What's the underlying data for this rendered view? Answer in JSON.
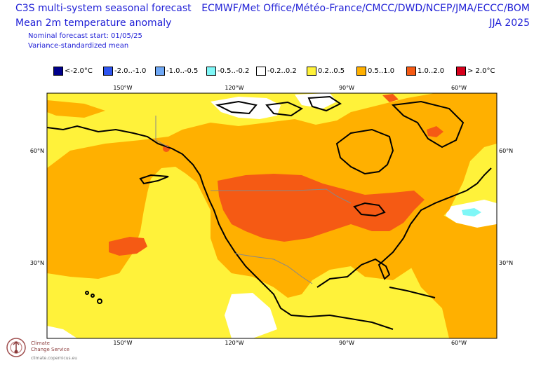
{
  "header": {
    "title_left": "C3S multi-system seasonal forecast",
    "subtitle_left": "Mean 2m temperature anomaly",
    "nominal_start": "Nominal forecast start: 01/05/25",
    "variance_note": "Variance-standardized mean",
    "title_right": "ECMWF/Met Office/Météo-France/CMCC/DWD/NCEP/JMA/ECCC/BOM",
    "season": "JJA 2025"
  },
  "legend": [
    {
      "label": "<-2.0°C",
      "color": "#00008b"
    },
    {
      "label": "-2.0..-1.0",
      "color": "#2f55f0"
    },
    {
      "label": "-1.0..-0.5",
      "color": "#6fa8f5"
    },
    {
      "label": "-0.5..-0.2",
      "color": "#7ff7f7"
    },
    {
      "label": "-0.2..0.2",
      "color": "#ffffff"
    },
    {
      "label": "0.2..0.5",
      "color": "#fff23a"
    },
    {
      "label": "0.5..1.0",
      "color": "#ffb000"
    },
    {
      "label": "1.0..2.0",
      "color": "#f55a14"
    },
    {
      "label": "> 2.0°C",
      "color": "#d6001c"
    }
  ],
  "axes": {
    "lon_ticks": [
      "150°W",
      "120°W",
      "90°W",
      "60°W"
    ],
    "lat_ticks": [
      "60°N",
      "30°N"
    ]
  },
  "logo": {
    "line1": "Climate",
    "line2": "Change Service",
    "url": "climate.copernicus.eu"
  }
}
